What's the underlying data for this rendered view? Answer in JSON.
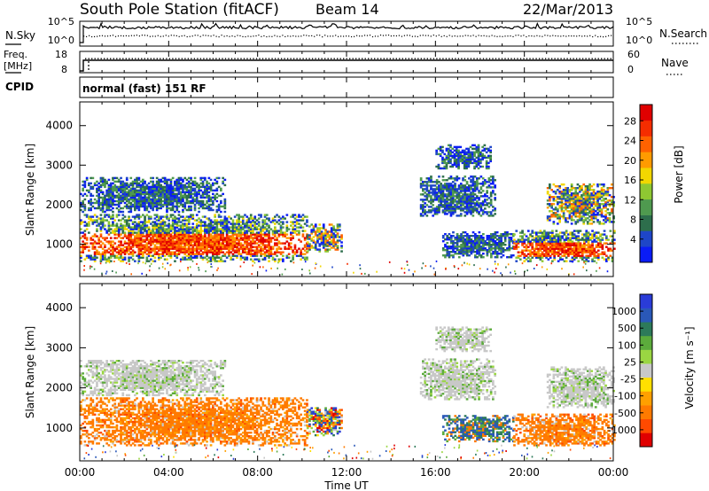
{
  "header": {
    "station": "South Pole Station (fitACF)",
    "beam": "Beam 14",
    "date": "22/Mar/2013"
  },
  "noise_panel": {
    "left_label": "N.Sky",
    "left_ticks": [
      "10^5",
      "10^0"
    ],
    "right_ticks": [
      "10^5",
      "10^0"
    ],
    "right_label": "N.Search"
  },
  "freq_panel": {
    "left_label_1": "Freq.",
    "left_label_2": "[MHz]",
    "left_ticks": [
      "18",
      "8"
    ],
    "right_ticks": [
      "60",
      "0"
    ],
    "right_label": "Nave"
  },
  "cpid_panel": {
    "label": "CPID",
    "program": "normal (fast) 151 RF"
  },
  "x_axis": {
    "label": "Time UT",
    "ticks": [
      "00:00",
      "04:00",
      "08:00",
      "12:00",
      "16:00",
      "20:00",
      "00:00"
    ]
  },
  "chart_data": [
    {
      "type": "heatmap",
      "title": "",
      "ylabel": "Slant Range [km]",
      "xlabel": "",
      "y_ticks": [
        "1000",
        "2000",
        "3000",
        "4000"
      ],
      "ylim": [
        180,
        4600
      ],
      "colorbar": {
        "label": "Power [dB]",
        "ticks": [
          "4",
          "8",
          "12",
          "16",
          "20",
          "24",
          "28"
        ],
        "colors": [
          "#0a1cf5",
          "#1e46c8",
          "#2d6e4c",
          "#4f9a4f",
          "#8ec832",
          "#f2d700",
          "#ff9b00",
          "#ff6200",
          "#f52d00",
          "#e00000"
        ]
      },
      "regions": [
        {
          "t0": 0.0,
          "t1": 10.2,
          "r0": 550,
          "r1": 1750,
          "level": "high"
        },
        {
          "t0": 0.0,
          "t1": 6.5,
          "r0": 1800,
          "r1": 2700,
          "level": "low"
        },
        {
          "t0": 10.2,
          "t1": 11.8,
          "r0": 800,
          "r1": 1500,
          "level": "mid"
        },
        {
          "t0": 15.3,
          "t1": 18.7,
          "r0": 1700,
          "r1": 2700,
          "level": "low"
        },
        {
          "t0": 16.0,
          "t1": 18.5,
          "r0": 2900,
          "r1": 3500,
          "level": "low"
        },
        {
          "t0": 16.3,
          "t1": 19.5,
          "r0": 650,
          "r1": 1300,
          "level": "low"
        },
        {
          "t0": 19.5,
          "t1": 24.0,
          "r0": 550,
          "r1": 1350,
          "level": "high"
        },
        {
          "t0": 21.0,
          "t1": 24.0,
          "r0": 1500,
          "r1": 2500,
          "level": "mid"
        }
      ]
    },
    {
      "type": "heatmap",
      "title": "",
      "ylabel": "Slant Range [km]",
      "xlabel": "Time UT",
      "y_ticks": [
        "1000",
        "2000",
        "3000",
        "4000"
      ],
      "ylim": [
        180,
        4600
      ],
      "colorbar": {
        "label": "Velocity [m s⁻¹]",
        "ticks": [
          "1000",
          "500",
          "100",
          "25",
          "-25",
          "-100",
          "-500",
          "-1000"
        ],
        "colors": [
          "#2a3cd8",
          "#2a58b8",
          "#2d7a5a",
          "#5cab3c",
          "#9ad642",
          "#c8c8c8",
          "#ffe000",
          "#ffa000",
          "#ff7a00",
          "#ff4a00",
          "#e00000"
        ]
      },
      "regions": [
        {
          "t0": 0.0,
          "t1": 10.2,
          "r0": 550,
          "r1": 1750,
          "level": "away"
        },
        {
          "t0": 0.0,
          "t1": 6.5,
          "r0": 1800,
          "r1": 2700,
          "level": "zero"
        },
        {
          "t0": 10.2,
          "t1": 11.8,
          "r0": 800,
          "r1": 1500,
          "level": "mixed"
        },
        {
          "t0": 15.3,
          "t1": 18.7,
          "r0": 1700,
          "r1": 2700,
          "level": "zero"
        },
        {
          "t0": 16.0,
          "t1": 18.5,
          "r0": 2900,
          "r1": 3500,
          "level": "zero"
        },
        {
          "t0": 16.3,
          "t1": 19.5,
          "r0": 650,
          "r1": 1300,
          "level": "toward"
        },
        {
          "t0": 19.5,
          "t1": 24.0,
          "r0": 550,
          "r1": 1350,
          "level": "away"
        },
        {
          "t0": 21.0,
          "t1": 24.0,
          "r0": 1500,
          "r1": 2500,
          "level": "zero"
        }
      ]
    }
  ]
}
